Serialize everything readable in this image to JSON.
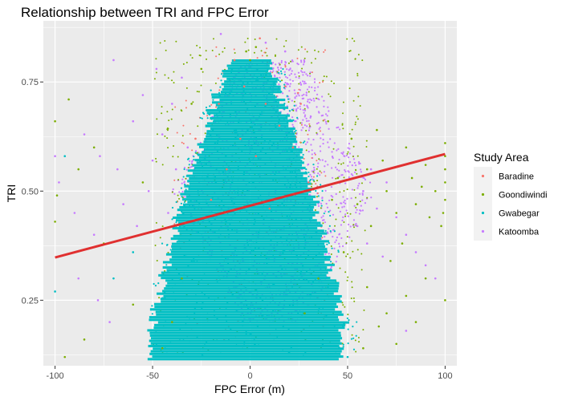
{
  "chart_data": {
    "type": "scatter",
    "title": "Relationship between TRI and FPC Error",
    "xlabel": "FPC Error (m)",
    "ylabel": "TRI",
    "xlim": [
      -106,
      106
    ],
    "ylim": [
      0.1,
      0.89
    ],
    "x_ticks": [
      -100,
      -50,
      0,
      50,
      100
    ],
    "x_tick_labels": [
      "-100",
      "-50",
      "0",
      "50",
      "100"
    ],
    "y_ticks": [
      0.25,
      0.5,
      0.75
    ],
    "y_tick_labels": [
      "0.25",
      "0.50",
      "0.75"
    ],
    "grid": true,
    "legend": {
      "title": "Study Area",
      "position": "right",
      "entries": [
        "Baradine",
        "Goondiwindi",
        "Gwabegar",
        "Katoomba"
      ]
    },
    "series": [
      {
        "name": "Baradine",
        "color": "#f8766d",
        "points": [
          [
            -5,
            0.62
          ],
          [
            3,
            0.58
          ],
          [
            8,
            0.7
          ],
          [
            -12,
            0.55
          ],
          [
            15,
            0.65
          ],
          [
            -20,
            0.48
          ],
          [
            22,
            0.6
          ],
          [
            -8,
            0.8
          ],
          [
            30,
            0.52
          ],
          [
            -28,
            0.62
          ],
          [
            10,
            0.46
          ],
          [
            -3,
            0.74
          ],
          [
            18,
            0.74
          ],
          [
            -16,
            0.7
          ],
          [
            26,
            0.7
          ],
          [
            5,
            0.85
          ]
        ]
      },
      {
        "name": "Goondiwindi",
        "color": "#7cae00",
        "points": [
          [
            -100,
            0.66
          ],
          [
            -99,
            0.49
          ],
          [
            -100,
            0.43
          ],
          [
            -88,
            0.55
          ],
          [
            -93,
            0.71
          ],
          [
            -80,
            0.6
          ],
          [
            -75,
            0.38
          ],
          [
            -85,
            0.16
          ],
          [
            -95,
            0.12
          ],
          [
            -60,
            0.24
          ],
          [
            -55,
            0.52
          ],
          [
            -45,
            0.14
          ],
          [
            100,
            0.61
          ],
          [
            100,
            0.58
          ],
          [
            100,
            0.55
          ],
          [
            100,
            0.52
          ],
          [
            100,
            0.48
          ],
          [
            99,
            0.45
          ],
          [
            98,
            0.42
          ],
          [
            95,
            0.5
          ],
          [
            92,
            0.44
          ],
          [
            90,
            0.56
          ],
          [
            88,
            0.51
          ],
          [
            85,
            0.47
          ],
          [
            83,
            0.53
          ],
          [
            80,
            0.6
          ],
          [
            78,
            0.38
          ],
          [
            75,
            0.45
          ],
          [
            72,
            0.34
          ],
          [
            70,
            0.5
          ],
          [
            68,
            0.57
          ],
          [
            65,
            0.64
          ],
          [
            62,
            0.42
          ],
          [
            60,
            0.55
          ],
          [
            55,
            0.47
          ],
          [
            52,
            0.62
          ],
          [
            48,
            0.36
          ],
          [
            45,
            0.53
          ],
          [
            42,
            0.48
          ],
          [
            40,
            0.66
          ],
          [
            100,
            0.25
          ],
          [
            90,
            0.3
          ],
          [
            80,
            0.26
          ],
          [
            85,
            0.2
          ],
          [
            70,
            0.22
          ],
          [
            60,
            0.28
          ],
          [
            75,
            0.15
          ],
          [
            -30,
            0.7
          ],
          [
            -25,
            0.78
          ],
          [
            3,
            0.83
          ],
          [
            0,
            0.8
          ],
          [
            -2,
            0.82
          ],
          [
            35,
            0.3
          ],
          [
            28,
            0.22
          ],
          [
            -35,
            0.3
          ],
          [
            -40,
            0.2
          ],
          [
            58,
            0.14
          ],
          [
            66,
            0.19
          ]
        ]
      },
      {
        "name": "Gwabegar",
        "color": "#00bfc4",
        "points": [
          [
            -100,
            0.27
          ],
          [
            -95,
            0.58
          ],
          [
            -60,
            0.36
          ],
          [
            -70,
            0.3
          ],
          [
            50,
            0.12
          ],
          [
            -48,
            0.15
          ],
          [
            20,
            0.13
          ]
        ]
      },
      {
        "name": "Katoomba",
        "color": "#c77cff",
        "points": [
          [
            -100,
            0.58
          ],
          [
            -98,
            0.52
          ],
          [
            -90,
            0.45
          ],
          [
            -85,
            0.63
          ],
          [
            -80,
            0.4
          ],
          [
            -77,
            0.58
          ],
          [
            -70,
            0.8
          ],
          [
            -68,
            0.55
          ],
          [
            -65,
            0.47
          ],
          [
            -60,
            0.66
          ],
          [
            -58,
            0.42
          ],
          [
            -55,
            0.72
          ],
          [
            -52,
            0.5
          ],
          [
            -50,
            0.57
          ],
          [
            -48,
            0.78
          ],
          [
            -45,
            0.63
          ],
          [
            -42,
            0.45
          ],
          [
            -40,
            0.7
          ],
          [
            -38,
            0.55
          ],
          [
            -35,
            0.76
          ],
          [
            -32,
            0.6
          ],
          [
            55,
            0.42
          ],
          [
            58,
            0.5
          ],
          [
            60,
            0.38
          ],
          [
            62,
            0.55
          ],
          [
            65,
            0.46
          ],
          [
            68,
            0.35
          ],
          [
            70,
            0.52
          ],
          [
            75,
            0.44
          ],
          [
            80,
            0.4
          ],
          [
            85,
            0.36
          ],
          [
            90,
            0.33
          ],
          [
            95,
            0.3
          ],
          [
            -15,
            0.86
          ],
          [
            8,
            0.84
          ],
          [
            18,
            0.82
          ],
          [
            -72,
            0.2
          ],
          [
            -78,
            0.25
          ],
          [
            80,
            0.18
          ],
          [
            -88,
            0.3
          ]
        ]
      }
    ],
    "fit_line": {
      "color": "#e03030",
      "x": [
        -100,
        100
      ],
      "y": [
        0.348,
        0.585
      ]
    }
  }
}
